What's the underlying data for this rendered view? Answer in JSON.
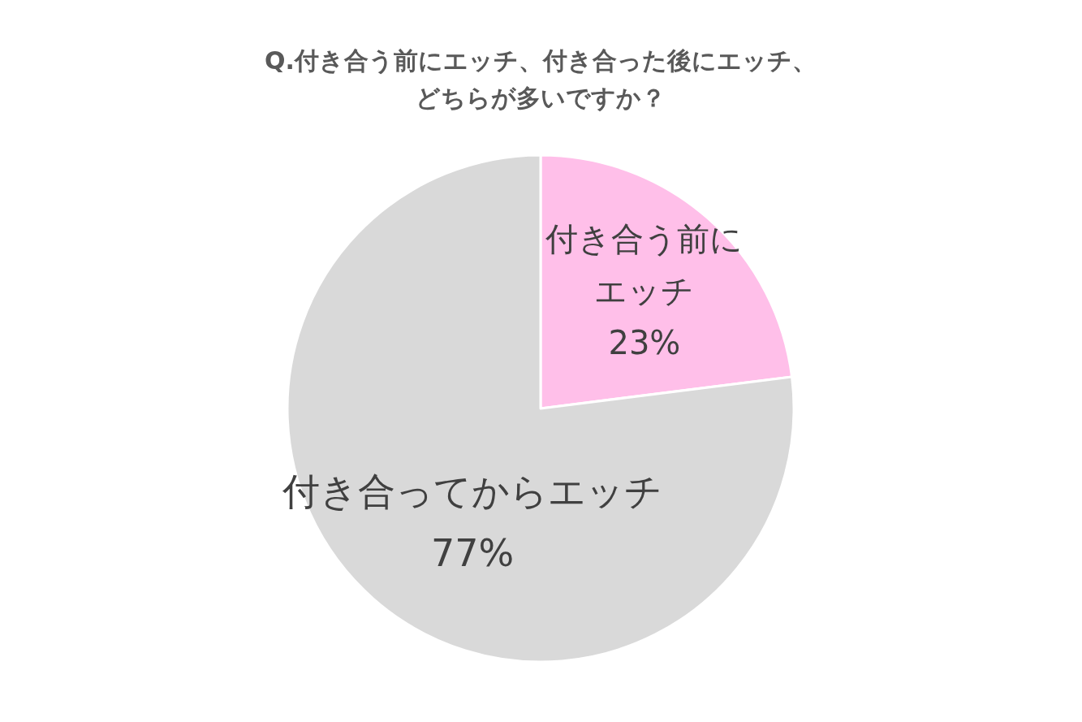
{
  "chart_data": {
    "type": "pie",
    "title": "Q.付き合う前にエッチ、付き合った後にエッチ、どちらが多いですか？",
    "categories": [
      "付き合う前にエッチ",
      "付き合ってからエッチ"
    ],
    "values": [
      23,
      77
    ],
    "value_labels": [
      "23%",
      "77%"
    ],
    "colors": [
      "#ffbfe9",
      "#d9d9d9"
    ]
  }
}
